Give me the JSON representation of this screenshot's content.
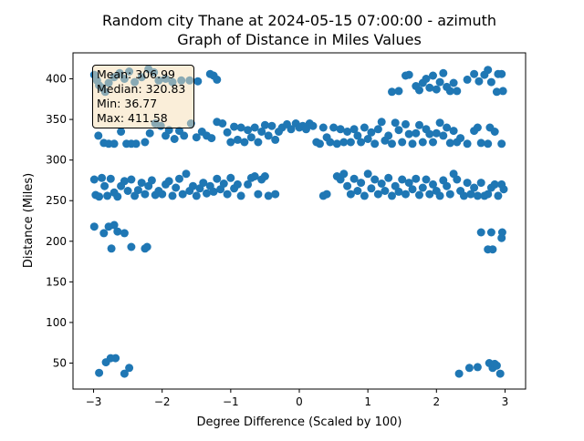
{
  "chart_data": {
    "type": "scatter",
    "title": "Random city Thane at 2024-05-15 07:00:00  - azimuth",
    "subtitle": "Graph of Distance in Miles Values",
    "xlabel": "Degree Difference (Scaled by 100)",
    "ylabel": "Distance (Miles)",
    "xlim": [
      -3.3,
      3.3
    ],
    "ylim": [
      18,
      432
    ],
    "xticks": [
      -3,
      -2,
      -1,
      0,
      1,
      2,
      3
    ],
    "yticks": [
      50,
      100,
      150,
      200,
      250,
      300,
      350,
      400
    ],
    "grid": false,
    "marker_color": "#1f77b4",
    "stats": {
      "mean": "Mean: 306.99",
      "median": "Median: 320.83",
      "min": "Min: 36.77",
      "max": "Max: 411.58"
    },
    "stats_box_color": "#f5deb3",
    "series": [
      {
        "points": [
          [
            -2.99,
            405
          ],
          [
            -2.95,
            398
          ],
          [
            -2.92,
            392
          ],
          [
            -2.88,
            389
          ],
          [
            -2.83,
            384
          ],
          [
            -2.78,
            395
          ],
          [
            -2.7,
            402
          ],
          [
            -2.62,
            407
          ],
          [
            -2.55,
            400
          ],
          [
            -2.48,
            409
          ],
          [
            -2.4,
            396
          ],
          [
            -2.3,
            402
          ],
          [
            -2.2,
            412
          ],
          [
            -2.12,
            408
          ],
          [
            -2.05,
            398
          ],
          [
            -1.95,
            400
          ],
          [
            -1.85,
            396
          ],
          [
            -1.72,
            398
          ],
          [
            -1.6,
            398
          ],
          [
            -1.48,
            397
          ],
          [
            -1.3,
            406
          ],
          [
            -1.25,
            404
          ],
          [
            -1.2,
            399
          ],
          [
            -2.93,
            330
          ],
          [
            -2.85,
            321
          ],
          [
            -2.78,
            320
          ],
          [
            -2.7,
            320
          ],
          [
            -2.6,
            335
          ],
          [
            -2.52,
            320
          ],
          [
            -2.45,
            320
          ],
          [
            -2.38,
            320
          ],
          [
            -2.25,
            322
          ],
          [
            -2.18,
            333
          ],
          [
            -2.1,
            345
          ],
          [
            -2.02,
            342
          ],
          [
            -1.95,
            330
          ],
          [
            -1.9,
            337
          ],
          [
            -1.82,
            326
          ],
          [
            -1.75,
            336
          ],
          [
            -1.68,
            330
          ],
          [
            -1.58,
            345
          ],
          [
            -1.5,
            328
          ],
          [
            -1.42,
            335
          ],
          [
            -1.35,
            330
          ],
          [
            -1.28,
            327
          ],
          [
            -1.2,
            347
          ],
          [
            -1.12,
            345
          ],
          [
            -1.05,
            334
          ],
          [
            -1.0,
            322
          ],
          [
            -0.95,
            341
          ],
          [
            -0.9,
            325
          ],
          [
            -0.85,
            340
          ],
          [
            -0.8,
            322
          ],
          [
            -0.75,
            337
          ],
          [
            -0.7,
            328
          ],
          [
            -0.65,
            340
          ],
          [
            -0.6,
            322
          ],
          [
            -0.55,
            335
          ],
          [
            -0.5,
            343
          ],
          [
            -0.45,
            330
          ],
          [
            -0.4,
            342
          ],
          [
            -0.35,
            325
          ],
          [
            -0.3,
            335
          ],
          [
            -0.25,
            340
          ],
          [
            -0.18,
            344
          ],
          [
            -0.12,
            338
          ],
          [
            -0.05,
            345
          ],
          [
            0.0,
            340
          ],
          [
            0.05,
            342
          ],
          [
            0.1,
            338
          ],
          [
            0.15,
            345
          ],
          [
            0.2,
            342
          ],
          [
            0.25,
            322
          ],
          [
            0.3,
            320
          ],
          [
            0.35,
            340
          ],
          [
            0.4,
            328
          ],
          [
            0.45,
            322
          ],
          [
            0.5,
            340
          ],
          [
            0.55,
            320
          ],
          [
            0.6,
            338
          ],
          [
            0.65,
            322
          ],
          [
            0.7,
            335
          ],
          [
            0.75,
            322
          ],
          [
            0.8,
            338
          ],
          [
            0.85,
            330
          ],
          [
            0.9,
            322
          ],
          [
            0.95,
            340
          ],
          [
            1.0,
            326
          ],
          [
            1.05,
            334
          ],
          [
            1.1,
            320
          ],
          [
            1.15,
            338
          ],
          [
            1.2,
            347
          ],
          [
            1.25,
            324
          ],
          [
            1.3,
            330
          ],
          [
            1.35,
            320
          ],
          [
            1.4,
            346
          ],
          [
            1.45,
            337
          ],
          [
            1.5,
            322
          ],
          [
            1.55,
            344
          ],
          [
            1.6,
            332
          ],
          [
            1.65,
            320
          ],
          [
            1.7,
            333
          ],
          [
            1.75,
            343
          ],
          [
            1.8,
            322
          ],
          [
            1.85,
            338
          ],
          [
            1.9,
            332
          ],
          [
            1.95,
            322
          ],
          [
            2.0,
            333
          ],
          [
            2.05,
            346
          ],
          [
            2.1,
            330
          ],
          [
            2.15,
            340
          ],
          [
            2.2,
            321
          ],
          [
            2.25,
            336
          ],
          [
            2.3,
            322
          ],
          [
            2.35,
            327
          ],
          [
            2.45,
            320
          ],
          [
            2.55,
            336
          ],
          [
            2.6,
            340
          ],
          [
            2.65,
            321
          ],
          [
            2.75,
            320
          ],
          [
            2.78,
            340
          ],
          [
            2.85,
            335
          ],
          [
            2.95,
            320
          ],
          [
            1.35,
            384
          ],
          [
            1.45,
            385
          ],
          [
            1.55,
            404
          ],
          [
            1.6,
            405
          ],
          [
            1.7,
            391
          ],
          [
            1.75,
            386
          ],
          [
            1.8,
            395
          ],
          [
            1.85,
            400
          ],
          [
            1.9,
            389
          ],
          [
            1.95,
            404
          ],
          [
            2.0,
            387
          ],
          [
            2.05,
            396
          ],
          [
            2.1,
            407
          ],
          [
            2.15,
            390
          ],
          [
            2.2,
            385
          ],
          [
            2.25,
            395
          ],
          [
            2.3,
            385
          ],
          [
            2.45,
            399
          ],
          [
            2.55,
            406
          ],
          [
            2.62,
            397
          ],
          [
            2.7,
            405
          ],
          [
            2.75,
            411
          ],
          [
            2.8,
            396
          ],
          [
            2.88,
            384
          ],
          [
            2.9,
            406
          ],
          [
            2.95,
            406
          ],
          [
            2.97,
            385
          ],
          [
            -2.99,
            276
          ],
          [
            -2.97,
            257
          ],
          [
            -2.92,
            255
          ],
          [
            -2.88,
            278
          ],
          [
            -2.84,
            268
          ],
          [
            -2.8,
            256
          ],
          [
            -2.75,
            277
          ],
          [
            -2.7,
            260
          ],
          [
            -2.65,
            255
          ],
          [
            -2.6,
            268
          ],
          [
            -2.55,
            274
          ],
          [
            -2.5,
            262
          ],
          [
            -2.45,
            276
          ],
          [
            -2.4,
            256
          ],
          [
            -2.35,
            263
          ],
          [
            -2.3,
            272
          ],
          [
            -2.25,
            258
          ],
          [
            -2.2,
            268
          ],
          [
            -2.15,
            275
          ],
          [
            -2.1,
            257
          ],
          [
            -2.05,
            262
          ],
          [
            -2.0,
            258
          ],
          [
            -1.95,
            270
          ],
          [
            -1.9,
            274
          ],
          [
            -1.85,
            256
          ],
          [
            -1.8,
            266
          ],
          [
            -1.75,
            277
          ],
          [
            -1.7,
            258
          ],
          [
            -1.65,
            283
          ],
          [
            -1.6,
            262
          ],
          [
            -1.55,
            268
          ],
          [
            -1.5,
            256
          ],
          [
            -1.45,
            265
          ],
          [
            -1.4,
            272
          ],
          [
            -1.35,
            259
          ],
          [
            -1.3,
            268
          ],
          [
            -1.25,
            261
          ],
          [
            -1.2,
            277
          ],
          [
            -1.15,
            264
          ],
          [
            -1.1,
            271
          ],
          [
            -1.05,
            258
          ],
          [
            -1.0,
            278
          ],
          [
            -0.95,
            265
          ],
          [
            -0.9,
            270
          ],
          [
            -0.85,
            256
          ],
          [
            -0.75,
            270
          ],
          [
            -0.7,
            278
          ],
          [
            -0.65,
            280
          ],
          [
            -0.6,
            258
          ],
          [
            -0.55,
            276
          ],
          [
            -0.5,
            280
          ],
          [
            -0.45,
            256
          ],
          [
            -0.35,
            258
          ],
          [
            0.35,
            256
          ],
          [
            0.4,
            258
          ],
          [
            0.55,
            280
          ],
          [
            0.6,
            276
          ],
          [
            0.65,
            283
          ],
          [
            0.7,
            268
          ],
          [
            0.75,
            258
          ],
          [
            0.8,
            277
          ],
          [
            0.85,
            262
          ],
          [
            0.9,
            272
          ],
          [
            0.95,
            256
          ],
          [
            1.0,
            283
          ],
          [
            1.05,
            265
          ],
          [
            1.1,
            276
          ],
          [
            1.15,
            258
          ],
          [
            1.2,
            271
          ],
          [
            1.25,
            262
          ],
          [
            1.3,
            278
          ],
          [
            1.35,
            256
          ],
          [
            1.4,
            268
          ],
          [
            1.45,
            261
          ],
          [
            1.5,
            276
          ],
          [
            1.55,
            258
          ],
          [
            1.6,
            272
          ],
          [
            1.65,
            264
          ],
          [
            1.7,
            277
          ],
          [
            1.75,
            257
          ],
          [
            1.8,
            266
          ],
          [
            1.85,
            276
          ],
          [
            1.9,
            258
          ],
          [
            1.95,
            270
          ],
          [
            2.0,
            262
          ],
          [
            2.05,
            256
          ],
          [
            2.1,
            275
          ],
          [
            2.15,
            268
          ],
          [
            2.2,
            258
          ],
          [
            2.25,
            283
          ],
          [
            2.3,
            276
          ],
          [
            2.35,
            262
          ],
          [
            2.4,
            256
          ],
          [
            2.45,
            272
          ],
          [
            2.5,
            258
          ],
          [
            2.55,
            266
          ],
          [
            2.6,
            256
          ],
          [
            2.65,
            272
          ],
          [
            2.7,
            256
          ],
          [
            2.75,
            258
          ],
          [
            2.8,
            266
          ],
          [
            2.85,
            270
          ],
          [
            2.9,
            256
          ],
          [
            2.95,
            270
          ],
          [
            2.98,
            264
          ],
          [
            -2.99,
            218
          ],
          [
            -2.85,
            210
          ],
          [
            -2.78,
            218
          ],
          [
            -2.74,
            191
          ],
          [
            -2.7,
            220
          ],
          [
            -2.65,
            212
          ],
          [
            -2.55,
            210
          ],
          [
            -2.45,
            193
          ],
          [
            -2.25,
            191
          ],
          [
            -2.22,
            193
          ],
          [
            2.65,
            211
          ],
          [
            2.75,
            190
          ],
          [
            2.8,
            211
          ],
          [
            2.82,
            190
          ],
          [
            2.95,
            204
          ],
          [
            2.96,
            211
          ],
          [
            -2.92,
            38
          ],
          [
            -2.82,
            51
          ],
          [
            -2.75,
            56
          ],
          [
            -2.68,
            56
          ],
          [
            -2.55,
            37
          ],
          [
            -2.48,
            44
          ],
          [
            2.33,
            37
          ],
          [
            2.48,
            44
          ],
          [
            2.6,
            45
          ],
          [
            2.77,
            50
          ],
          [
            2.82,
            44
          ],
          [
            2.85,
            49
          ],
          [
            2.88,
            47
          ],
          [
            2.93,
            37
          ]
        ]
      }
    ]
  }
}
